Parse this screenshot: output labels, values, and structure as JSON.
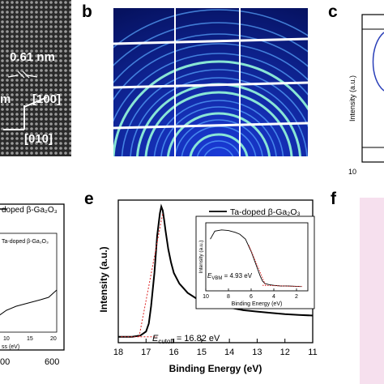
{
  "panels": {
    "b": {
      "label": "b"
    },
    "c": {
      "label": "c",
      "ylabel": "Intensity (a.u.)",
      "x_ticks": [
        "10"
      ]
    },
    "e": {
      "label": "e"
    },
    "f": {
      "label": "f"
    }
  },
  "tem": {
    "spacing": "0.61 nm",
    "dir_100": "[100]",
    "dir_010": "[010]",
    "cut_text": "m"
  },
  "panel_d": {
    "legend": "doped β-Ga₂O₃",
    "inset_legend": "Ta-doped β-Ga₂O₃",
    "inset_x_ticks": [
      "10",
      "15",
      "20"
    ],
    "inset_xlabel": "ss (eV)",
    "x_ticks": [
      "00",
      "600"
    ]
  },
  "chart_data": {
    "type": "line",
    "title": "",
    "xlabel": "Binding Energy (eV)",
    "ylabel": "Intensity (a.u.)",
    "xlim": [
      18,
      11
    ],
    "x_ticks": [
      "18",
      "17",
      "16",
      "15",
      "14",
      "13",
      "12",
      "11"
    ],
    "legend": "Ta-doped β-Ga₂O₃",
    "annotation": "E_cutoff = 16.82 eV",
    "annotation_parts": {
      "prefix": "E",
      "sub": "cutoff",
      "suffix": " = 16.82 eV"
    },
    "series": [
      {
        "name": "Ta-doped β-Ga₂O₃",
        "x": [
          18.0,
          17.5,
          17.2,
          17.0,
          16.9,
          16.82,
          16.7,
          16.6,
          16.5,
          16.45,
          16.4,
          16.35,
          16.3,
          16.2,
          16.1,
          16.0,
          15.8,
          15.5,
          15.2,
          15.0,
          14.5,
          14.0,
          13.5,
          13.0,
          12.5,
          12.0,
          11.5,
          11.0
        ],
        "y": [
          0.02,
          0.02,
          0.03,
          0.06,
          0.12,
          0.25,
          0.5,
          0.78,
          0.95,
          1.0,
          0.97,
          0.9,
          0.82,
          0.68,
          0.58,
          0.5,
          0.42,
          0.35,
          0.31,
          0.29,
          0.26,
          0.24,
          0.22,
          0.21,
          0.2,
          0.19,
          0.185,
          0.18
        ]
      }
    ],
    "inset": {
      "xlabel": "Binding Energy (eV)",
      "ylabel": "Intensity (a.u.)",
      "xlim": [
        10,
        1
      ],
      "x_ticks": [
        "10",
        "8",
        "6",
        "4",
        "2"
      ],
      "annotation_parts": {
        "prefix": "E",
        "sub": "VBM",
        "suffix": " = 4.93 eV"
      },
      "series": [
        {
          "name": "Ta-doped β-Ga₂O₃",
          "x": [
            9.6,
            9.2,
            8.6,
            8.0,
            7.4,
            7.0,
            6.5,
            6.0,
            5.5,
            5.2,
            5.0,
            4.8,
            4.4,
            4.0,
            3.4,
            2.8,
            2.2,
            1.6
          ],
          "y": [
            0.8,
            0.93,
            0.95,
            0.94,
            0.91,
            0.88,
            0.8,
            0.6,
            0.35,
            0.2,
            0.12,
            0.08,
            0.06,
            0.05,
            0.04,
            0.04,
            0.035,
            0.03
          ]
        }
      ]
    }
  }
}
